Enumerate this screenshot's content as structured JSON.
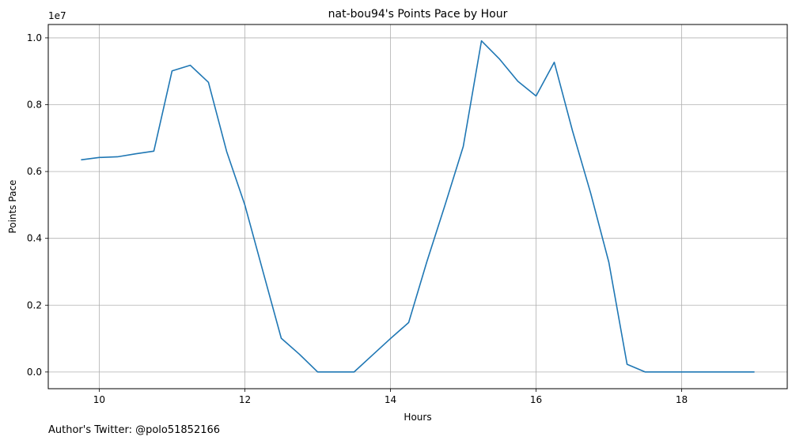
{
  "chart_data": {
    "type": "line",
    "title": "nat-bou94's Points Pace by Hour",
    "xlabel": "Hours",
    "ylabel": "Points Pace",
    "y_offset_label": "1e7",
    "xlim": [
      9.3,
      19.45
    ],
    "ylim": [
      -500000,
      10400000
    ],
    "x_ticks": [
      10,
      12,
      14,
      16,
      18
    ],
    "y_ticks": [
      0,
      2000000,
      4000000,
      6000000,
      8000000,
      10000000
    ],
    "x_tick_labels": [
      "10",
      "12",
      "14",
      "16",
      "18"
    ],
    "y_tick_labels": [
      "0.0",
      "0.2",
      "0.4",
      "0.6",
      "0.8",
      "1.0"
    ],
    "grid": true,
    "series": [
      {
        "color": "#1f77b4",
        "x": [
          9.75,
          10.0,
          10.25,
          10.5,
          10.75,
          11.0,
          11.25,
          11.5,
          11.75,
          12.0,
          12.25,
          12.5,
          12.75,
          13.0,
          13.25,
          13.5,
          13.75,
          14.0,
          14.25,
          14.5,
          14.75,
          15.0,
          15.25,
          15.5,
          15.75,
          16.0,
          16.25,
          16.5,
          16.75,
          17.0,
          17.25,
          17.5,
          17.75,
          18.0,
          18.25,
          18.5,
          18.75,
          19.0
        ],
        "y": [
          6350000,
          6420000,
          6440000,
          6530000,
          6610000,
          9010000,
          9180000,
          8670000,
          6600000,
          5000000,
          3000000,
          1010000,
          530000,
          0,
          0,
          0,
          500000,
          1000000,
          1480000,
          3300000,
          5000000,
          6750000,
          9910000,
          9360000,
          8700000,
          8260000,
          9270000,
          7220000,
          5350000,
          3280000,
          230000,
          0,
          0,
          0,
          0,
          0,
          0,
          0
        ]
      }
    ]
  },
  "footer": {
    "note": "Author's Twitter: @polo51852166"
  }
}
